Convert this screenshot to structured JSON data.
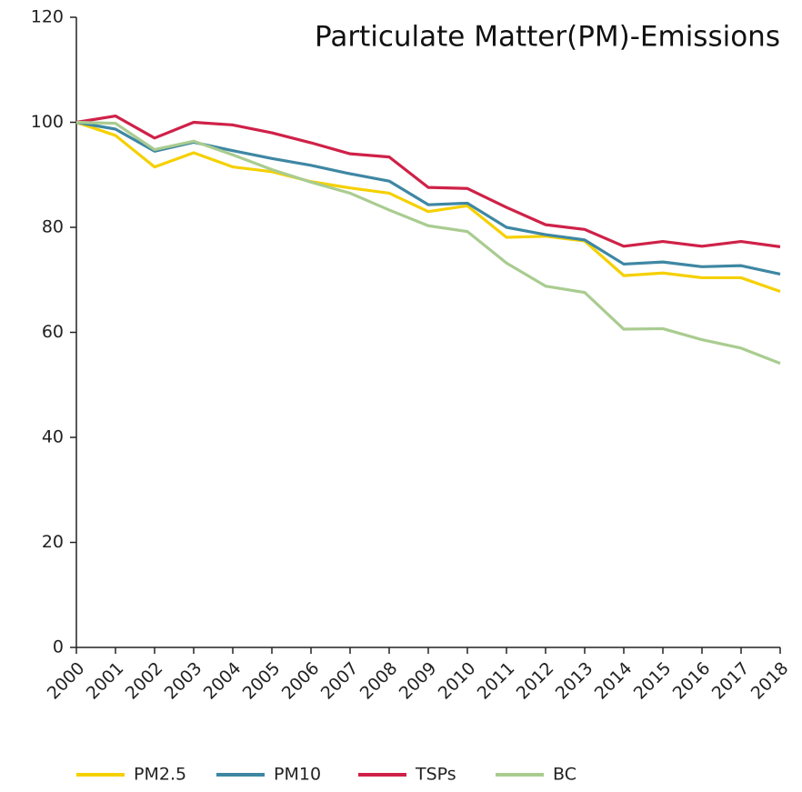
{
  "chart_data": {
    "type": "line",
    "title": "Particulate Matter(PM)-Emissions",
    "categories": [
      "2000",
      "2001",
      "2002",
      "2003",
      "2004",
      "2005",
      "2006",
      "2007",
      "2008",
      "2009",
      "2010",
      "2011",
      "2012",
      "2013",
      "2014",
      "2015",
      "2016",
      "2017",
      "2018"
    ],
    "series": [
      {
        "name": "PM2.5",
        "color": "#f5d000",
        "values": [
          100,
          97.5,
          91.5,
          94.2,
          91.5,
          90.6,
          88.7,
          87.5,
          86.5,
          83,
          84.1,
          78.1,
          78.3,
          77.4,
          70.8,
          71.3,
          70.4,
          70.4,
          67.8
        ]
      },
      {
        "name": "PM10",
        "color": "#3e87a3",
        "values": [
          100,
          98.7,
          94.5,
          96.2,
          94.6,
          93.1,
          91.8,
          90.2,
          88.8,
          84.3,
          84.6,
          80,
          78.6,
          77.6,
          73,
          73.4,
          72.5,
          72.7,
          71.1
        ]
      },
      {
        "name": "TSPs",
        "color": "#cf2148",
        "values": [
          100,
          101.2,
          97,
          100,
          99.5,
          98,
          96.1,
          94,
          93.4,
          87.6,
          87.4,
          83.8,
          80.5,
          79.6,
          76.4,
          77.3,
          76.4,
          77.3,
          76.3
        ]
      },
      {
        "name": "BC",
        "color": "#a9cc90",
        "values": [
          100,
          99.8,
          94.8,
          96.4,
          93.8,
          91,
          88.6,
          86.5,
          83.3,
          80.3,
          79.2,
          73.2,
          68.8,
          67.6,
          60.6,
          60.7,
          58.6,
          57,
          54.1
        ]
      }
    ],
    "ylim": [
      0,
      120
    ],
    "yticks": [
      0,
      20,
      40,
      60,
      80,
      100,
      120
    ],
    "grid": false,
    "legend": "bottom"
  }
}
